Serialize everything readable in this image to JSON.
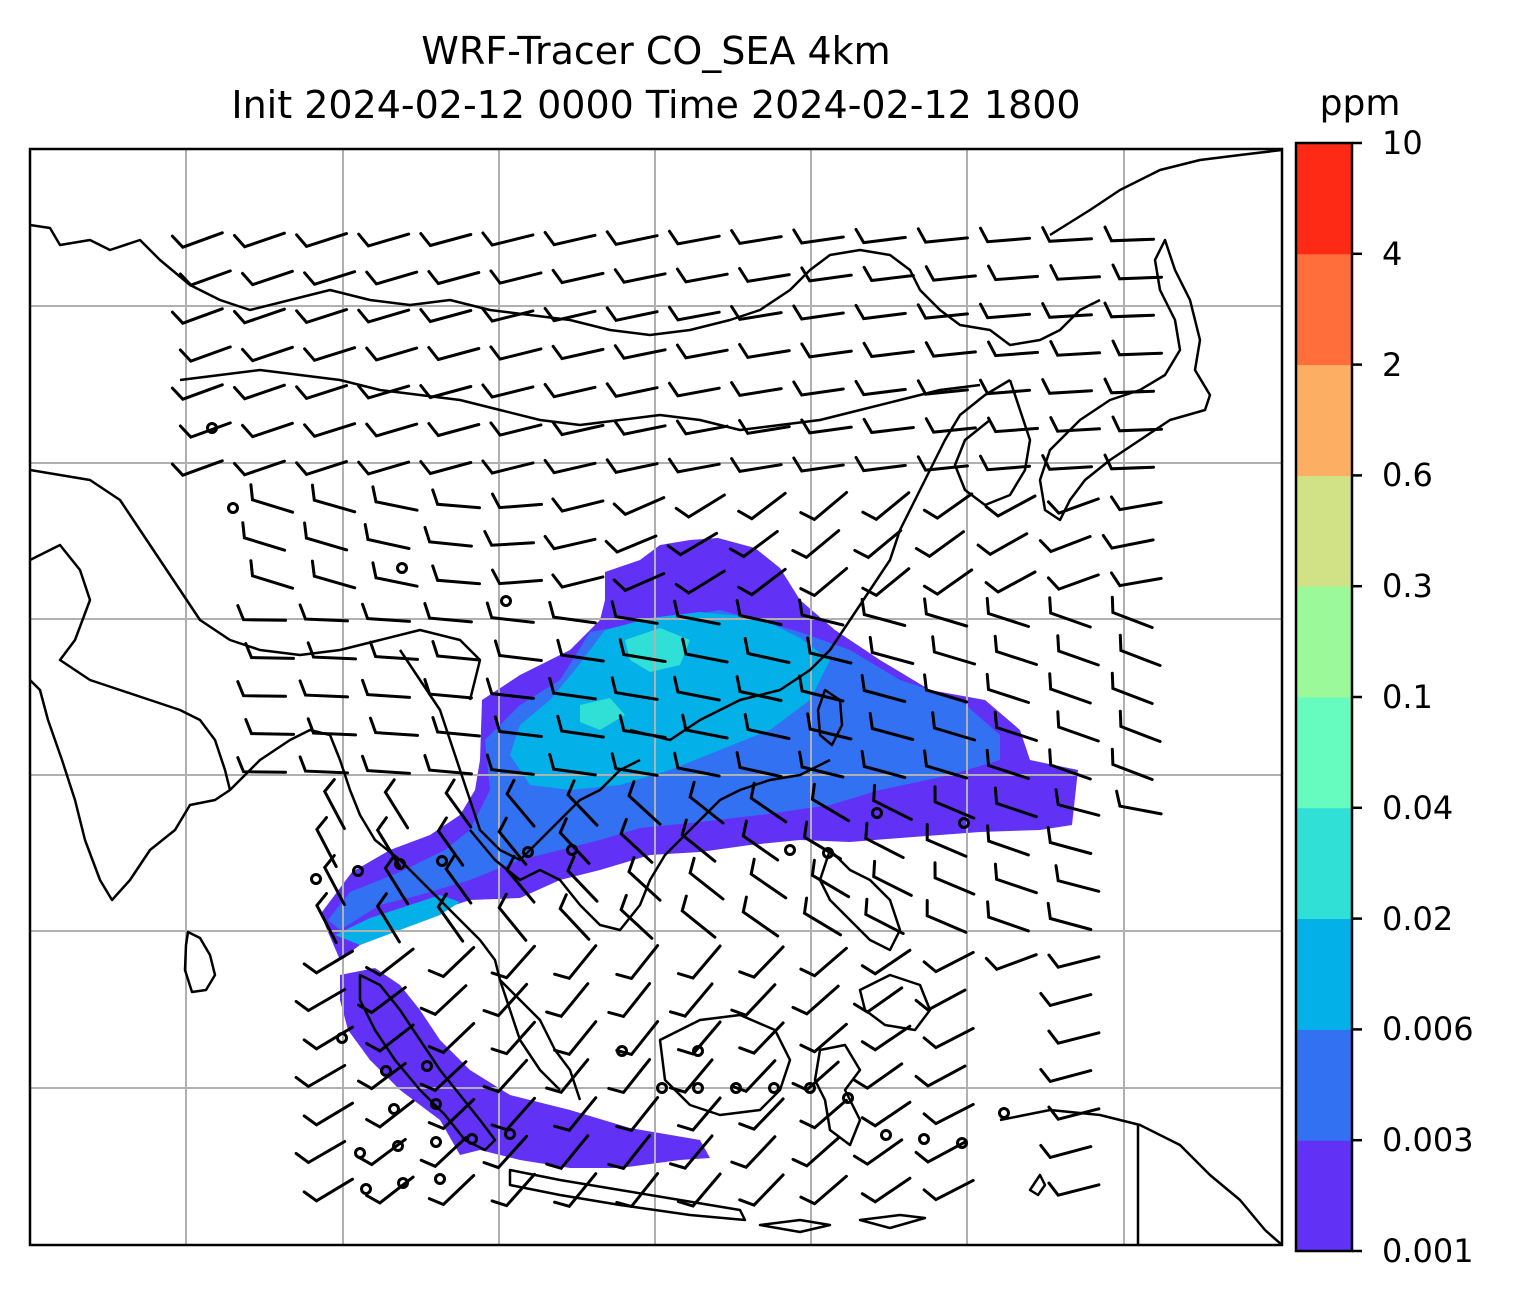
{
  "title": {
    "line1": "WRF-Tracer CO_SEA 4km",
    "line2": "Init 2024-02-12 0000 Time 2024-02-12 1800"
  },
  "colorbar": {
    "unit": "ppm",
    "levels": [
      "0.001",
      "0.003",
      "0.006",
      "0.02",
      "0.04",
      "0.1",
      "0.3",
      "0.6",
      "2",
      "4",
      "10"
    ],
    "colors": [
      "#6231f6",
      "#3271f2",
      "#04b0e8",
      "#30dfd5",
      "#66fbbf",
      "#9cf999",
      "#d0e186",
      "#fcae62",
      "#ff6e3b",
      "#ff2a16"
    ]
  },
  "map": {
    "features": [
      "coastlines",
      "country-borders",
      "lat-lon-gridlines",
      "wind-barbs",
      "co-tracer-plume"
    ]
  }
}
